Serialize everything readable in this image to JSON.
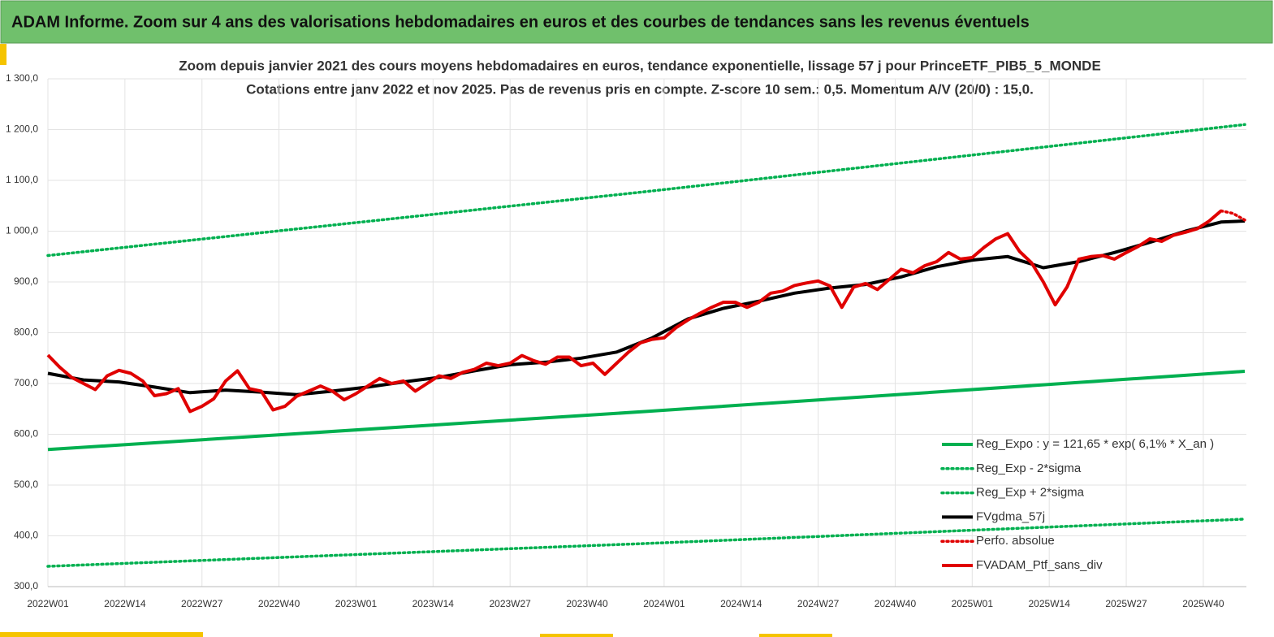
{
  "header": {
    "title": "ADAM Informe. Zoom sur 4 ans des valorisations hebdomadaires en euros et des courbes de tendances sans les revenus éventuels"
  },
  "chart_data": {
    "type": "line",
    "title": "Zoom depuis janvier 2021 des cours moyens hebdomadaires  en euros, tendance exponentielle, lissage 57 j pour PrinceETF_PIB5_5_MONDE",
    "subtitle": "Cotations  entre janv 2022 et nov 2025. Pas de revenus pris en compte. Z-score 10 sem.: 0,5. Momentum A/V (20/0) : 15,0.",
    "xlim": [
      0,
      202
    ],
    "xticks": [
      {
        "value": 0,
        "label": "2022W01"
      },
      {
        "value": 13,
        "label": "2022W14"
      },
      {
        "value": 26,
        "label": "2022W27"
      },
      {
        "value": 39,
        "label": "2022W40"
      },
      {
        "value": 52,
        "label": "2023W01"
      },
      {
        "value": 65,
        "label": "2023W14"
      },
      {
        "value": 78,
        "label": "2023W27"
      },
      {
        "value": 91,
        "label": "2023W40"
      },
      {
        "value": 104,
        "label": "2024W01"
      },
      {
        "value": 117,
        "label": "2024W14"
      },
      {
        "value": 130,
        "label": "2024W27"
      },
      {
        "value": 143,
        "label": "2024W40"
      },
      {
        "value": 156,
        "label": "2025W01"
      },
      {
        "value": 169,
        "label": "2025W14"
      },
      {
        "value": 182,
        "label": "2025W27"
      },
      {
        "value": 195,
        "label": "2025W40"
      }
    ],
    "ylim": [
      300,
      1300
    ],
    "yticks": [
      {
        "value": 300,
        "label": "300,0"
      },
      {
        "value": 400,
        "label": "400,0"
      },
      {
        "value": 500,
        "label": "500,0"
      },
      {
        "value": 600,
        "label": "600,0"
      },
      {
        "value": 700,
        "label": "700,0"
      },
      {
        "value": 800,
        "label": "800,0"
      },
      {
        "value": 900,
        "label": "900,0"
      },
      {
        "value": 1000,
        "label": "1 000,0"
      },
      {
        "value": 1100,
        "label": "1 100,0"
      },
      {
        "value": 1200,
        "label": "1 200,0"
      },
      {
        "value": 1300,
        "label": "1 300,0"
      }
    ],
    "grid": true,
    "legend": "lower-right",
    "series": [
      {
        "name": "Reg_Expo : y = 121,65 * exp( 6,1% *  X_an )",
        "color": "#00b050",
        "style": "solid",
        "x": [
          0,
          101,
          202
        ],
        "values": [
          570,
          645,
          724
        ]
      },
      {
        "name": "Reg_Exp - 2*sigma",
        "color": "#00b050",
        "style": "dotted",
        "x": [
          0,
          101,
          202
        ],
        "values": [
          340,
          385,
          433
        ]
      },
      {
        "name": "Reg_Exp + 2*sigma",
        "color": "#00b050",
        "style": "dotted",
        "x": [
          0,
          101,
          202
        ],
        "values": [
          952,
          1078,
          1210
        ]
      },
      {
        "name": "FVgdma_57j",
        "color": "#000000",
        "style": "solid",
        "x": [
          0,
          6,
          12,
          18,
          24,
          30,
          36,
          42,
          48,
          54,
          60,
          66,
          72,
          78,
          84,
          90,
          96,
          102,
          108,
          114,
          120,
          126,
          132,
          138,
          144,
          150,
          156,
          162,
          168,
          174,
          180,
          186,
          192,
          198,
          202
        ],
        "values": [
          720,
          707,
          703,
          693,
          682,
          687,
          683,
          678,
          685,
          693,
          703,
          712,
          725,
          737,
          742,
          750,
          762,
          790,
          827,
          848,
          862,
          878,
          888,
          895,
          910,
          930,
          943,
          950,
          928,
          940,
          958,
          978,
          1000,
          1018,
          1020
        ]
      },
      {
        "name": "Perfo. absolue",
        "color": "#e00000",
        "style": "dotted",
        "x": [
          198,
          200,
          202
        ],
        "values": [
          1040,
          1035,
          1022
        ]
      },
      {
        "name": "FVADAM_Ptf_sans_div",
        "color": "#e00000",
        "style": "solid",
        "x": [
          0,
          2,
          4,
          6,
          8,
          10,
          12,
          14,
          16,
          18,
          20,
          22,
          24,
          26,
          28,
          30,
          32,
          34,
          36,
          38,
          40,
          42,
          44,
          46,
          48,
          50,
          52,
          54,
          56,
          58,
          60,
          62,
          64,
          66,
          68,
          70,
          72,
          74,
          76,
          78,
          80,
          82,
          84,
          86,
          88,
          90,
          92,
          94,
          96,
          98,
          100,
          102,
          104,
          106,
          108,
          110,
          112,
          114,
          116,
          118,
          120,
          122,
          124,
          126,
          128,
          130,
          132,
          134,
          136,
          138,
          140,
          142,
          144,
          146,
          148,
          150,
          152,
          154,
          156,
          158,
          160,
          162,
          164,
          166,
          168,
          170,
          172,
          174,
          176,
          178,
          180,
          182,
          184,
          186,
          188,
          190,
          192,
          194,
          196,
          198
        ],
        "values": [
          756,
          732,
          712,
          700,
          688,
          715,
          726,
          720,
          705,
          676,
          680,
          690,
          645,
          655,
          670,
          705,
          725,
          690,
          685,
          648,
          655,
          675,
          685,
          695,
          685,
          668,
          680,
          695,
          710,
          700,
          705,
          685,
          700,
          715,
          710,
          722,
          728,
          740,
          735,
          740,
          755,
          745,
          738,
          752,
          752,
          735,
          740,
          718,
          740,
          762,
          780,
          787,
          790,
          810,
          825,
          838,
          850,
          860,
          860,
          850,
          860,
          878,
          882,
          893,
          898,
          902,
          892,
          850,
          890,
          897,
          885,
          905,
          925,
          918,
          932,
          940,
          958,
          945,
          948,
          968,
          985,
          995,
          960,
          938,
          900,
          855,
          890,
          945,
          950,
          952,
          945,
          958,
          970,
          985,
          980,
          992,
          998,
          1005,
          1020,
          1040
        ]
      }
    ]
  }
}
